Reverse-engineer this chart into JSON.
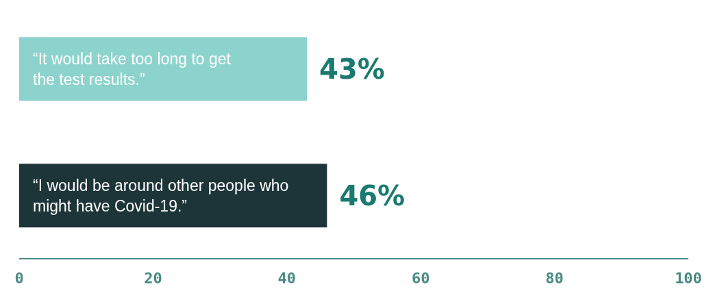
{
  "chart_data": {
    "type": "bar",
    "orientation": "horizontal",
    "categories": [
      "“It would take too long to get the test results.”",
      "“I would be around other people who might have Covid-19.”"
    ],
    "values": [
      43,
      46
    ],
    "colors": [
      "#8dd3cd",
      "#1d3538"
    ],
    "value_labels": [
      "43%",
      "46%"
    ],
    "xlim": [
      0,
      100
    ],
    "xticks": [
      0,
      20,
      40,
      60,
      80,
      100
    ],
    "tick_labels": "x"
  }
}
